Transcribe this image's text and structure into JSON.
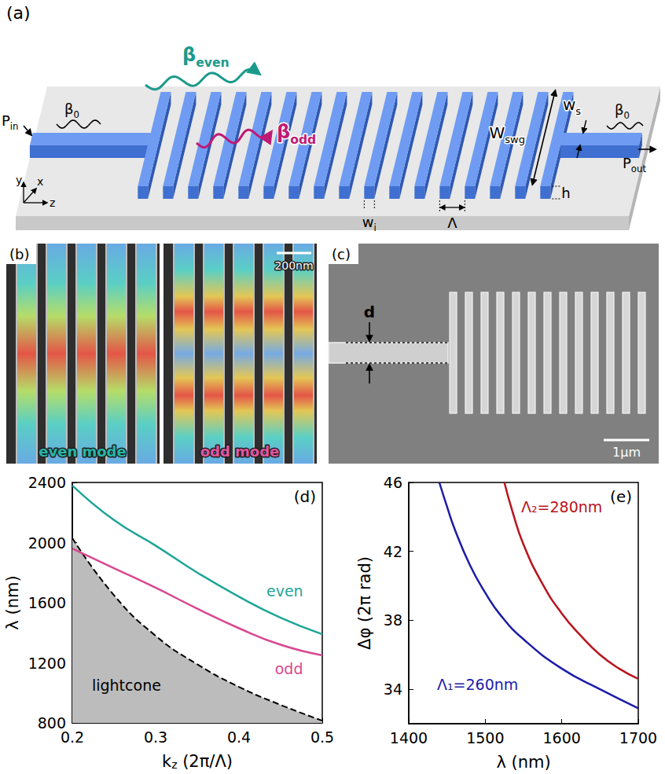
{
  "diagram": {
    "a": {
      "panel": "(a)",
      "input": {
        "base": "P",
        "sub": "in"
      },
      "output": {
        "base": "P",
        "sub": "out"
      },
      "input_mode": {
        "base": "β",
        "sub": "0"
      },
      "output_mode": {
        "base": "β",
        "sub": "0"
      },
      "even_mode": {
        "base": "β",
        "sub": "even",
        "color": "#1b9a8b"
      },
      "odd_mode": {
        "base": "β",
        "sub": "odd",
        "color": "#bf1a75"
      },
      "swg_width": {
        "base": "W",
        "sub": "swg"
      },
      "strip_width": {
        "base": "w",
        "sub": "s"
      },
      "height": {
        "base": "h"
      },
      "segment_width": {
        "base": "w",
        "sub": "i"
      },
      "period": {
        "base": "Λ"
      },
      "axes": {
        "vertical": "y",
        "lateral": "x",
        "propagation": "z"
      }
    },
    "b": {
      "panel": "(b)",
      "scale_bar": "200nm",
      "images": [
        {
          "label": "even mode",
          "color": "#27b5a5",
          "lobes": 1
        },
        {
          "label": "odd mode",
          "color": "#e2559f",
          "lobes": 2
        }
      ]
    },
    "c": {
      "panel": "(c)",
      "dimension": "d",
      "scale_bar": "1µm"
    }
  },
  "chart_data": [
    {
      "type": "line",
      "panel": "(d)",
      "xlabel": {
        "base": "k",
        "sub": "z",
        "after": " (2π/Λ)"
      },
      "ylabel": {
        "base": "λ (nm)"
      },
      "x": [
        0.2,
        0.25,
        0.3,
        0.35,
        0.4,
        0.45,
        0.5
      ],
      "xlim": [
        0.2,
        0.5
      ],
      "xticks": [
        0.2,
        0.3,
        0.4,
        0.5
      ],
      "ylim": [
        800,
        2400
      ],
      "yticks": [
        800,
        1200,
        1600,
        2000,
        2400
      ],
      "series": [
        {
          "name": "even",
          "color": "#1fa597",
          "values": [
            2380,
            2150,
            1980,
            1800,
            1640,
            1500,
            1390
          ],
          "label_at": [
            0.455,
            1680
          ]
        },
        {
          "name": "odd",
          "color": "#d9478f",
          "values": [
            1960,
            1830,
            1700,
            1560,
            1430,
            1320,
            1250
          ],
          "label_at": [
            0.46,
            1160
          ]
        },
        {
          "name": "lightcone",
          "type": "area",
          "color": "#bcbcbc",
          "line_style": "dashed",
          "values": [
            2030,
            1650,
            1380,
            1190,
            1040,
            920,
            815
          ],
          "label_at": [
            0.265,
            1050
          ]
        }
      ]
    },
    {
      "type": "line",
      "panel": "(e)",
      "xlabel": {
        "base": "λ (nm)"
      },
      "ylabel": {
        "base": "Δφ (2π rad)"
      },
      "xlim": [
        1400,
        1700
      ],
      "xticks": [
        1400,
        1500,
        1600,
        1700
      ],
      "ylim": [
        32,
        46
      ],
      "yticks": [
        34,
        38,
        42,
        46
      ],
      "series": [
        {
          "name": "Λ₁=260nm",
          "color": "#1c1ca8",
          "x": [
            1440,
            1450,
            1460,
            1480,
            1500,
            1520,
            1550,
            1600,
            1650,
            1700
          ],
          "values": [
            46,
            44.6,
            43.3,
            41.2,
            39.6,
            38.3,
            36.9,
            35.2,
            34.0,
            32.9
          ],
          "label_at": [
            1490,
            34.3
          ]
        },
        {
          "name": "Λ₂=280nm",
          "color": "#b8141c",
          "x": [
            1525,
            1535,
            1550,
            1575,
            1600,
            1625,
            1650,
            1675,
            1700
          ],
          "values": [
            46,
            44.4,
            42.4,
            40.1,
            38.4,
            37.1,
            36.0,
            35.2,
            34.6
          ],
          "label_at": [
            1600,
            44.6
          ]
        }
      ]
    }
  ]
}
